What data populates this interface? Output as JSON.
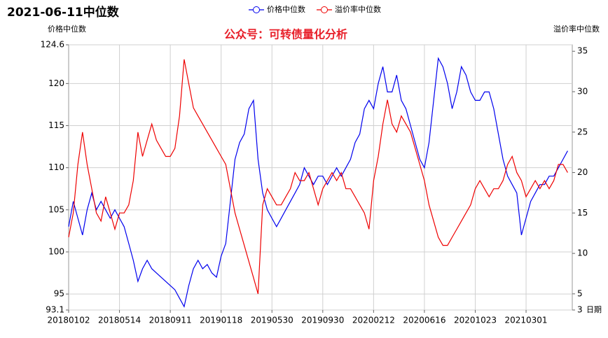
{
  "chart_data": {
    "type": "line",
    "title": "2021-06-11中位数",
    "ylabel": "价格中位数",
    "y2label": "溢价率中位数",
    "xlabel": "日期",
    "annotation": "公众号：可转债量化分析",
    "categories": [
      "20180102",
      null,
      null,
      null,
      null,
      null,
      null,
      null,
      null,
      null,
      null,
      "20180514",
      null,
      null,
      null,
      null,
      null,
      null,
      null,
      null,
      null,
      null,
      "20180911",
      null,
      null,
      null,
      null,
      null,
      null,
      null,
      null,
      null,
      null,
      "20190118",
      null,
      null,
      null,
      null,
      null,
      null,
      null,
      null,
      null,
      null,
      "20190530",
      null,
      null,
      null,
      null,
      null,
      null,
      null,
      null,
      null,
      null,
      "20190930",
      null,
      null,
      null,
      null,
      null,
      null,
      null,
      null,
      null,
      null,
      "20200212",
      null,
      null,
      null,
      null,
      null,
      null,
      null,
      null,
      null,
      null,
      "20200616",
      null,
      null,
      null,
      null,
      null,
      null,
      null,
      null,
      null,
      null,
      "20201023",
      null,
      null,
      null,
      null,
      null,
      null,
      null,
      null,
      null,
      null,
      "20210301",
      null,
      null,
      null,
      null,
      null,
      null,
      null,
      null,
      null
    ],
    "series": [
      {
        "name": "价格中位数",
        "color": "#0000ee",
        "values": [
          103,
          106,
          104,
          102,
          105,
          107,
          105,
          106,
          105,
          104,
          105,
          104,
          103,
          101,
          99,
          96.5,
          98,
          99,
          98,
          97.5,
          97,
          96.5,
          96,
          95.5,
          94.5,
          93.5,
          96,
          98,
          99,
          98,
          98.5,
          97.5,
          97,
          99.5,
          101,
          106,
          111,
          113,
          114,
          117,
          118,
          111,
          107,
          105,
          104,
          103,
          104,
          105,
          106,
          107,
          108,
          110,
          109,
          108,
          109,
          109,
          108,
          109,
          110,
          109,
          110,
          111,
          113,
          114,
          117,
          118,
          117,
          120,
          122,
          119,
          119,
          121,
          118,
          117,
          115,
          113,
          111,
          110,
          113,
          118,
          123,
          122,
          120,
          117,
          119,
          122,
          121,
          119,
          118,
          118,
          119,
          119,
          117,
          114,
          111,
          109,
          108,
          107,
          102,
          104,
          106,
          107,
          108,
          108,
          109,
          109,
          110,
          111,
          112
        ]
      },
      {
        "name": "溢价率中位数",
        "color": "#ee0000",
        "axis": "y2",
        "values": [
          12,
          15,
          21,
          25,
          21,
          18,
          15,
          14,
          17,
          15,
          13,
          15,
          15,
          16,
          19,
          25,
          22,
          24,
          26,
          24,
          23,
          22,
          22,
          23,
          27,
          34,
          31,
          28,
          27,
          26,
          25,
          24,
          23,
          22,
          21,
          18,
          15,
          13,
          11,
          9,
          7,
          5,
          16,
          18,
          17,
          16,
          16,
          17,
          18,
          20,
          19,
          19,
          20,
          18,
          16,
          18,
          19,
          20,
          19,
          20,
          18,
          18,
          17,
          16,
          15,
          13,
          19,
          22,
          26,
          29,
          26,
          25,
          27,
          26,
          25,
          23,
          21,
          19,
          16,
          14,
          12,
          11,
          11,
          12,
          13,
          14,
          15,
          16,
          18,
          19,
          18,
          17,
          18,
          18,
          19,
          21,
          22,
          20,
          19,
          17,
          18,
          19,
          18,
          19,
          18,
          19,
          21,
          21,
          20
        ]
      }
    ],
    "ylim": [
      93.1,
      124.6
    ],
    "yticks": [
      93.1,
      95,
      100,
      105,
      110,
      115,
      120,
      124.6
    ],
    "y2lim": [
      3,
      35.8
    ],
    "y2ticks": [
      3,
      5,
      10,
      15,
      20,
      25,
      30,
      35
    ],
    "grid": true,
    "legend": "top"
  }
}
